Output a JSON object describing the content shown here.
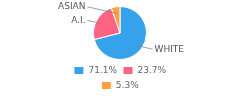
{
  "chart_data": {
    "type": "pie",
    "categories": [
      "71.1%",
      "23.7%",
      "5.3%"
    ],
    "values": [
      71.1,
      23.7,
      5.3
    ],
    "annotations": [
      "WHITE",
      "A.I.",
      "ASIAN"
    ],
    "legend": "bottom"
  }
}
